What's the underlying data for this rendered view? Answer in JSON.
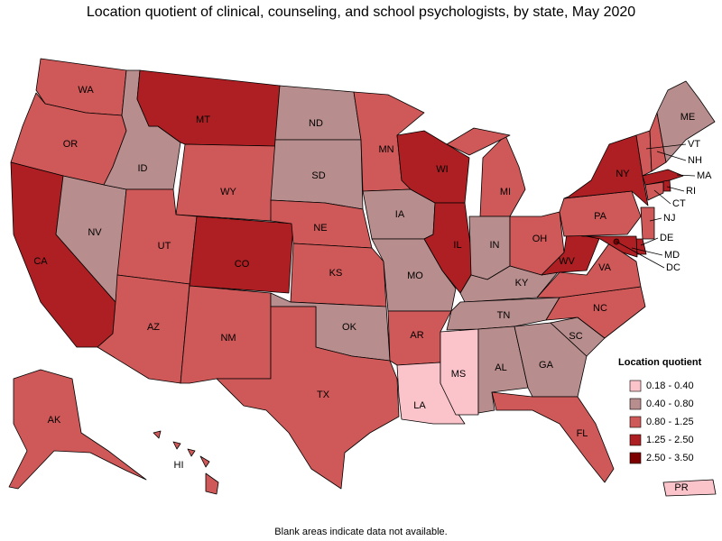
{
  "map": {
    "title": "Location quotient of clinical, counseling, and school psychologists, by state, May 2020",
    "note": "Blank areas indicate data not available.",
    "legend": {
      "title": "Location quotient",
      "items": [
        {
          "label": "0.18 - 0.40",
          "color": "#fbc4cb"
        },
        {
          "label": "0.40 - 0.80",
          "color": "#b88d8d"
        },
        {
          "label": "0.80 - 1.25",
          "color": "#cf5858"
        },
        {
          "label": "1.25 - 2.50",
          "color": "#ad1f22"
        },
        {
          "label": "2.50 - 3.50",
          "color": "#7d0000"
        }
      ]
    },
    "states": [
      {
        "label": "WA",
        "color": "#cf5858"
      },
      {
        "label": "OR",
        "color": "#cf5858"
      },
      {
        "label": "CA",
        "color": "#ad1f22"
      },
      {
        "label": "NV",
        "color": "#b88d8d"
      },
      {
        "label": "ID",
        "color": "#b88d8d"
      },
      {
        "label": "MT",
        "color": "#ad1f22"
      },
      {
        "label": "WY",
        "color": "#cf5858"
      },
      {
        "label": "UT",
        "color": "#cf5858"
      },
      {
        "label": "CO",
        "color": "#ad1f22"
      },
      {
        "label": "AZ",
        "color": "#cf5858"
      },
      {
        "label": "NM",
        "color": "#cf5858"
      },
      {
        "label": "ND",
        "color": "#b88d8d"
      },
      {
        "label": "SD",
        "color": "#b88d8d"
      },
      {
        "label": "NE",
        "color": "#cf5858"
      },
      {
        "label": "KS",
        "color": "#cf5858"
      },
      {
        "label": "OK",
        "color": "#b88d8d"
      },
      {
        "label": "TX",
        "color": "#cf5858"
      },
      {
        "label": "MN",
        "color": "#cf5858"
      },
      {
        "label": "IA",
        "color": "#b88d8d"
      },
      {
        "label": "MO",
        "color": "#b88d8d"
      },
      {
        "label": "AR",
        "color": "#cf5858"
      },
      {
        "label": "LA",
        "color": "#fbc4cb"
      },
      {
        "label": "MS",
        "color": "#fbc4cb"
      },
      {
        "label": "WI",
        "color": "#ad1f22"
      },
      {
        "label": "IL",
        "color": "#ad1f22"
      },
      {
        "label": "MI",
        "color": "#cf5858"
      },
      {
        "label": "IN",
        "color": "#b88d8d"
      },
      {
        "label": "OH",
        "color": "#cf5858"
      },
      {
        "label": "KY",
        "color": "#b88d8d"
      },
      {
        "label": "TN",
        "color": "#b88d8d"
      },
      {
        "label": "AL",
        "color": "#b88d8d"
      },
      {
        "label": "GA",
        "color": "#b88d8d"
      },
      {
        "label": "FL",
        "color": "#cf5858"
      },
      {
        "label": "SC",
        "color": "#b88d8d"
      },
      {
        "label": "NC",
        "color": "#cf5858"
      },
      {
        "label": "VA",
        "color": "#cf5858"
      },
      {
        "label": "WV",
        "color": "#ad1f22"
      },
      {
        "label": "PA",
        "color": "#cf5858"
      },
      {
        "label": "NY",
        "color": "#ad1f22"
      },
      {
        "label": "VT",
        "color": "#cf5858"
      },
      {
        "label": "NH",
        "color": "#cf5858"
      },
      {
        "label": "ME",
        "color": "#b88d8d"
      },
      {
        "label": "MA",
        "color": "#ad1f22"
      },
      {
        "label": "RI",
        "color": "#ad1f22"
      },
      {
        "label": "CT",
        "color": "#cf5858"
      },
      {
        "label": "NJ",
        "color": "#cf5858"
      },
      {
        "label": "DE",
        "color": "#ad1f22"
      },
      {
        "label": "MD",
        "color": "#ad1f22"
      },
      {
        "label": "DC",
        "color": "#7d0000"
      },
      {
        "label": "AK",
        "color": "#cf5858"
      },
      {
        "label": "HI",
        "color": "#cf5858"
      },
      {
        "label": "PR",
        "color": "#fbc4cb"
      }
    ]
  }
}
